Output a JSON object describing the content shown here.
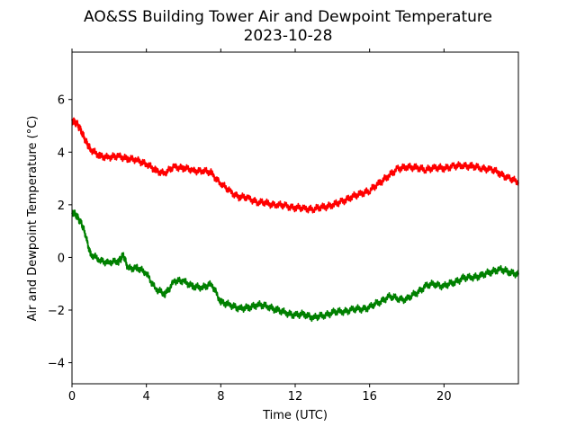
{
  "chart_data": {
    "type": "line",
    "title": "AO&SS Building Tower Air and Dewpoint Temperature",
    "subtitle": "2023-10-28",
    "xlabel": "Time (UTC)",
    "ylabel": "Air and Dewpoint Temperature (°C)",
    "xlim": [
      0,
      24
    ],
    "ylim": [
      -4.8,
      7.8
    ],
    "x_ticks": [
      0,
      4,
      8,
      12,
      16,
      20
    ],
    "x_tick_labels": [
      "0",
      "4",
      "8",
      "12",
      "16",
      "20"
    ],
    "y_ticks": [
      -4,
      -2,
      0,
      2,
      4,
      6
    ],
    "y_tick_labels": [
      "−4",
      "−2",
      "0",
      "2",
      "4",
      "6"
    ],
    "grid": false,
    "legend": false,
    "series": [
      {
        "color": "#ff0000",
        "x": [
          0,
          0.25,
          0.5,
          0.75,
          1,
          1.5,
          2,
          2.5,
          3,
          3.5,
          4,
          4.5,
          5,
          5.5,
          6,
          6.5,
          7,
          7.5,
          8,
          8.5,
          9,
          9.5,
          10,
          10.5,
          11,
          11.5,
          12,
          12.5,
          13,
          13.5,
          14,
          14.5,
          15,
          15.5,
          16,
          16.5,
          17,
          17.5,
          18,
          18.5,
          19,
          19.5,
          20,
          20.5,
          21,
          21.5,
          22,
          22.5,
          23,
          23.5,
          24
        ],
        "values": [
          5.2,
          5.1,
          4.8,
          4.4,
          4.1,
          3.85,
          3.8,
          3.85,
          3.75,
          3.7,
          3.55,
          3.3,
          3.2,
          3.45,
          3.4,
          3.3,
          3.3,
          3.2,
          2.8,
          2.5,
          2.3,
          2.25,
          2.1,
          2.05,
          2.0,
          1.95,
          1.9,
          1.85,
          1.85,
          1.9,
          2.0,
          2.1,
          2.3,
          2.4,
          2.55,
          2.8,
          3.1,
          3.35,
          3.45,
          3.4,
          3.35,
          3.4,
          3.4,
          3.45,
          3.5,
          3.45,
          3.4,
          3.35,
          3.2,
          3.0,
          2.85
        ]
      },
      {
        "color": "#008000",
        "x": [
          0,
          0.25,
          0.5,
          0.75,
          1,
          1.5,
          2,
          2.5,
          2.75,
          3,
          3.5,
          4,
          4.5,
          5,
          5.5,
          6,
          6.5,
          7,
          7.5,
          8,
          8.5,
          9,
          9.5,
          10,
          10.5,
          11,
          11.5,
          12,
          12.5,
          13,
          13.5,
          14,
          14.5,
          15,
          15.5,
          16,
          16.5,
          17,
          17.5,
          18,
          18.5,
          19,
          19.5,
          20,
          20.5,
          21,
          21.5,
          22,
          22.5,
          23,
          23.5,
          24
        ],
        "values": [
          1.7,
          1.6,
          1.3,
          0.8,
          0.1,
          -0.1,
          -0.2,
          -0.15,
          0.1,
          -0.4,
          -0.4,
          -0.6,
          -1.2,
          -1.4,
          -0.9,
          -0.9,
          -1.1,
          -1.15,
          -1.0,
          -1.7,
          -1.8,
          -1.95,
          -1.9,
          -1.8,
          -1.85,
          -2.0,
          -2.1,
          -2.2,
          -2.15,
          -2.3,
          -2.2,
          -2.1,
          -2.05,
          -2.0,
          -1.95,
          -1.9,
          -1.7,
          -1.5,
          -1.55,
          -1.6,
          -1.35,
          -1.1,
          -1.0,
          -1.1,
          -0.95,
          -0.8,
          -0.75,
          -0.7,
          -0.55,
          -0.45,
          -0.55,
          -0.65
        ]
      }
    ]
  }
}
